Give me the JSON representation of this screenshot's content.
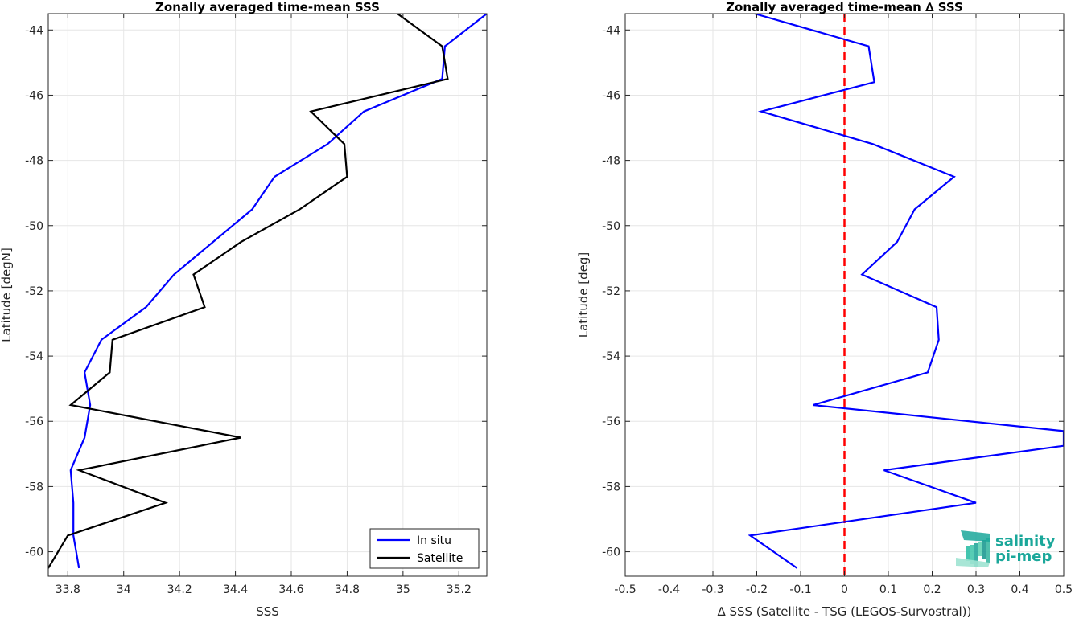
{
  "chart_data": [
    {
      "type": "line",
      "title": "Zonally averaged time-mean SSS",
      "xlabel": "SSS",
      "ylabel": "Latitude [degN]",
      "xlim": [
        33.73,
        35.3
      ],
      "ylim": [
        -60.75,
        -43.5
      ],
      "x_ticks": [
        33.8,
        34,
        34.2,
        34.4,
        34.6,
        34.8,
        35,
        35.2
      ],
      "y_ticks": [
        -44,
        -46,
        -48,
        -50,
        -52,
        -54,
        -56,
        -58,
        -60
      ],
      "grid": true,
      "legend_position": "bottom-right",
      "colors": {
        "In situ": "#0000ff",
        "Satellite": "#000000"
      },
      "series": [
        {
          "name": "In situ",
          "x": [
            35.3,
            35.15,
            35.14,
            34.86,
            34.73,
            34.54,
            34.46,
            34.18,
            34.08,
            33.92,
            33.86,
            33.88,
            33.86,
            33.81,
            33.82,
            33.82,
            33.84
          ],
          "y": [
            -43.5,
            -44.5,
            -45.5,
            -46.5,
            -47.5,
            -48.5,
            -49.5,
            -51.5,
            -52.5,
            -53.5,
            -54.5,
            -55.5,
            -56.5,
            -57.5,
            -58.5,
            -59.5,
            -60.5
          ]
        },
        {
          "name": "Satellite",
          "x": [
            34.98,
            35.14,
            35.16,
            34.67,
            34.79,
            34.8,
            34.63,
            34.42,
            34.25,
            34.29,
            33.96,
            33.95,
            33.81,
            34.42,
            33.84,
            34.15,
            33.8,
            33.73
          ],
          "y": [
            -43.5,
            -44.5,
            -45.5,
            -46.5,
            -47.5,
            -48.5,
            -49.5,
            -50.5,
            -51.5,
            -52.5,
            -53.5,
            -54.5,
            -55.5,
            -56.5,
            -57.5,
            -58.5,
            -59.5,
            -60.5
          ]
        }
      ]
    },
    {
      "type": "line",
      "title": "Zonally averaged time-mean ∆ SSS",
      "xlabel": "∆ SSS (Satellite - TSG (LEGOS-Survostral))",
      "ylabel": "Latitude [deg]",
      "xlim": [
        -0.5,
        0.5
      ],
      "ylim": [
        -60.75,
        -43.5
      ],
      "x_ticks": [
        -0.5,
        -0.4,
        -0.3,
        -0.2,
        -0.1,
        0,
        0.1,
        0.2,
        0.3,
        0.4,
        0.5
      ],
      "y_ticks": [
        -44,
        -46,
        -48,
        -50,
        -52,
        -54,
        -56,
        -58,
        -60
      ],
      "grid": true,
      "reference_line": {
        "x": 0,
        "color": "#ff0000",
        "style": "dashed"
      },
      "series": [
        {
          "x": [
            -0.205,
            0.055,
            0.068,
            -0.19,
            0.065,
            0.25,
            0.16,
            0.12,
            0.04,
            0.21,
            0.215,
            0.19,
            -0.072,
            0.5,
            0.5,
            0.09,
            0.3,
            -0.215,
            -0.108
          ],
          "y": [
            -43.5,
            -44.5,
            -45.6,
            -46.5,
            -47.5,
            -48.5,
            -49.5,
            -50.5,
            -51.5,
            -52.5,
            -53.5,
            -54.5,
            -55.5,
            -56.3,
            -56.75,
            -57.5,
            -58.5,
            -59.5,
            -60.5
          ]
        }
      ]
    }
  ],
  "logo": {
    "line1": "salinity",
    "line2": "pi-mep",
    "color": "#1aa79a"
  }
}
